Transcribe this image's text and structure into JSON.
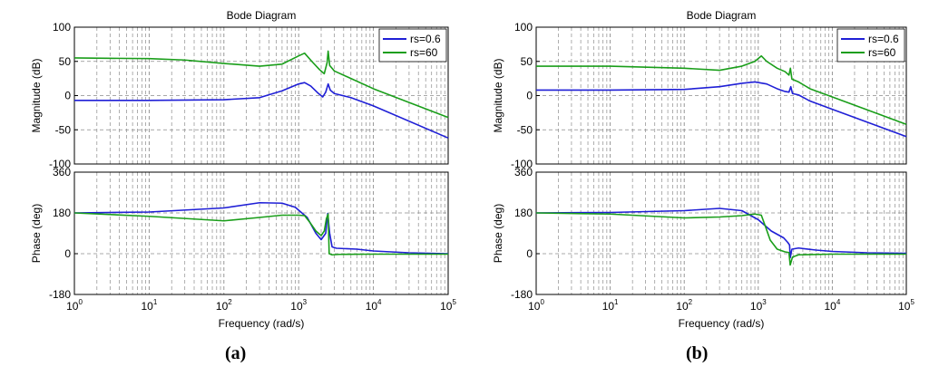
{
  "panel_labels": [
    "(a)",
    "(b)"
  ],
  "colors": {
    "blue": "#1f1fd6",
    "green": "#1a9e1a",
    "grid": "#8c8c8c",
    "axis": "#000000"
  },
  "chart_data": [
    {
      "type": "line",
      "panel": "(a)",
      "title": "Bode Diagram",
      "xlabel": "Frequency (rad/s)",
      "xscale": "log",
      "xlim": [
        1,
        100000
      ],
      "xtick_mantissa": "10",
      "xtick_exponents": [
        "0",
        "1",
        "2",
        "3",
        "4",
        "5"
      ],
      "legend": {
        "location": "top-right",
        "entries": [
          "rs=0.6",
          "rs=60"
        ]
      },
      "magnitude": {
        "ylabel": "Magnitude (dB)",
        "ylim": [
          -100,
          100
        ],
        "yticks": [
          -100,
          -50,
          0,
          50,
          100
        ],
        "series": [
          {
            "name": "rs=0.6",
            "points": [
              [
                1,
                -7
              ],
              [
                10,
                -7
              ],
              [
                100,
                -6
              ],
              [
                300,
                -3
              ],
              [
                600,
                7
              ],
              [
                1000,
                17
              ],
              [
                1200,
                19
              ],
              [
                1450,
                14
              ],
              [
                1800,
                4
              ],
              [
                2100,
                -2
              ],
              [
                2300,
                5
              ],
              [
                2480,
                17
              ],
              [
                2650,
                8
              ],
              [
                3000,
                3
              ],
              [
                5000,
                -3
              ],
              [
                10000,
                -15
              ],
              [
                100000,
                -62
              ]
            ]
          },
          {
            "name": "rs=60",
            "points": [
              [
                1,
                55
              ],
              [
                10,
                54
              ],
              [
                30,
                52
              ],
              [
                100,
                47
              ],
              [
                300,
                43
              ],
              [
                600,
                46
              ],
              [
                1000,
                58
              ],
              [
                1200,
                62
              ],
              [
                1500,
                50
              ],
              [
                1900,
                38
              ],
              [
                2200,
                32
              ],
              [
                2400,
                48
              ],
              [
                2480,
                65
              ],
              [
                2600,
                44
              ],
              [
                3000,
                36
              ],
              [
                5000,
                25
              ],
              [
                10000,
                10
              ],
              [
                100000,
                -32
              ]
            ]
          }
        ]
      },
      "phase": {
        "ylabel": "Phase (deg)",
        "ylim": [
          -180,
          360
        ],
        "yticks": [
          -180,
          0,
          180,
          360
        ],
        "series": [
          {
            "name": "rs=0.6",
            "points": [
              [
                1,
                180
              ],
              [
                10,
                184
              ],
              [
                100,
                202
              ],
              [
                300,
                225
              ],
              [
                600,
                223
              ],
              [
                900,
                205
              ],
              [
                1300,
                160
              ],
              [
                1700,
                90
              ],
              [
                2000,
                62
              ],
              [
                2300,
                90
              ],
              [
                2450,
                178
              ],
              [
                2600,
                90
              ],
              [
                2800,
                30
              ],
              [
                3200,
                24
              ],
              [
                6000,
                20
              ],
              [
                10000,
                12
              ],
              [
                30000,
                4
              ],
              [
                100000,
                0
              ]
            ]
          },
          {
            "name": "rs=60",
            "points": [
              [
                1,
                180
              ],
              [
                10,
                165
              ],
              [
                100,
                145
              ],
              [
                300,
                160
              ],
              [
                600,
                170
              ],
              [
                1000,
                170
              ],
              [
                1200,
                168
              ],
              [
                1400,
                140
              ],
              [
                1700,
                100
              ],
              [
                2000,
                80
              ],
              [
                2200,
                100
              ],
              [
                2350,
                155
              ],
              [
                2480,
                175
              ],
              [
                2560,
                0
              ],
              [
                2800,
                -5
              ],
              [
                3500,
                -3
              ],
              [
                10000,
                -2
              ],
              [
                100000,
                -2
              ]
            ]
          }
        ]
      }
    },
    {
      "type": "line",
      "panel": "(b)",
      "title": "Bode Diagram",
      "xlabel": "Frequency (rad/s)",
      "xscale": "log",
      "xlim": [
        1,
        100000
      ],
      "xtick_mantissa": "10",
      "xtick_exponents": [
        "0",
        "1",
        "2",
        "3",
        "4",
        "5"
      ],
      "legend": {
        "location": "top-right",
        "entries": [
          "rs=0.6",
          "rs=60"
        ]
      },
      "magnitude": {
        "ylabel": "Magnitude (dB)",
        "ylim": [
          -100,
          100
        ],
        "yticks": [
          -100,
          -50,
          0,
          50,
          100
        ],
        "series": [
          {
            "name": "rs=0.6",
            "points": [
              [
                1,
                8
              ],
              [
                10,
                8
              ],
              [
                100,
                9
              ],
              [
                300,
                13
              ],
              [
                600,
                18
              ],
              [
                900,
                20
              ],
              [
                1300,
                17
              ],
              [
                1800,
                10
              ],
              [
                2300,
                6
              ],
              [
                2600,
                5
              ],
              [
                2750,
                13
              ],
              [
                2900,
                3
              ],
              [
                3500,
                1
              ],
              [
                5000,
                -8
              ],
              [
                10000,
                -20
              ],
              [
                100000,
                -60
              ]
            ]
          },
          {
            "name": "rs=60",
            "points": [
              [
                1,
                43
              ],
              [
                10,
                43
              ],
              [
                100,
                40
              ],
              [
                300,
                37
              ],
              [
                600,
                43
              ],
              [
                900,
                50
              ],
              [
                1100,
                58
              ],
              [
                1300,
                50
              ],
              [
                1800,
                40
              ],
              [
                2300,
                35
              ],
              [
                2600,
                30
              ],
              [
                2720,
                40
              ],
              [
                2850,
                24
              ],
              [
                3500,
                20
              ],
              [
                5000,
                10
              ],
              [
                10000,
                -2
              ],
              [
                100000,
                -42
              ]
            ]
          }
        ]
      },
      "phase": {
        "ylabel": "Phase (deg)",
        "ylim": [
          -180,
          360
        ],
        "yticks": [
          -180,
          0,
          180,
          360
        ],
        "series": [
          {
            "name": "rs=0.6",
            "points": [
              [
                1,
                180
              ],
              [
                10,
                182
              ],
              [
                100,
                190
              ],
              [
                300,
                200
              ],
              [
                600,
                190
              ],
              [
                1000,
                150
              ],
              [
                1500,
                100
              ],
              [
                2200,
                70
              ],
              [
                2500,
                50
              ],
              [
                2650,
                38
              ],
              [
                2700,
                -18
              ],
              [
                2850,
                20
              ],
              [
                3500,
                25
              ],
              [
                6000,
                16
              ],
              [
                10000,
                10
              ],
              [
                30000,
                4
              ],
              [
                100000,
                2
              ]
            ]
          },
          {
            "name": "rs=60",
            "points": [
              [
                1,
                180
              ],
              [
                10,
                175
              ],
              [
                100,
                158
              ],
              [
                300,
                162
              ],
              [
                600,
                168
              ],
              [
                900,
                175
              ],
              [
                1100,
                170
              ],
              [
                1250,
                120
              ],
              [
                1450,
                60
              ],
              [
                1800,
                20
              ],
              [
                2300,
                8
              ],
              [
                2600,
                5
              ],
              [
                2700,
                -50
              ],
              [
                2900,
                -15
              ],
              [
                3500,
                -5
              ],
              [
                10000,
                -2
              ],
              [
                100000,
                -2
              ]
            ]
          }
        ]
      }
    }
  ]
}
